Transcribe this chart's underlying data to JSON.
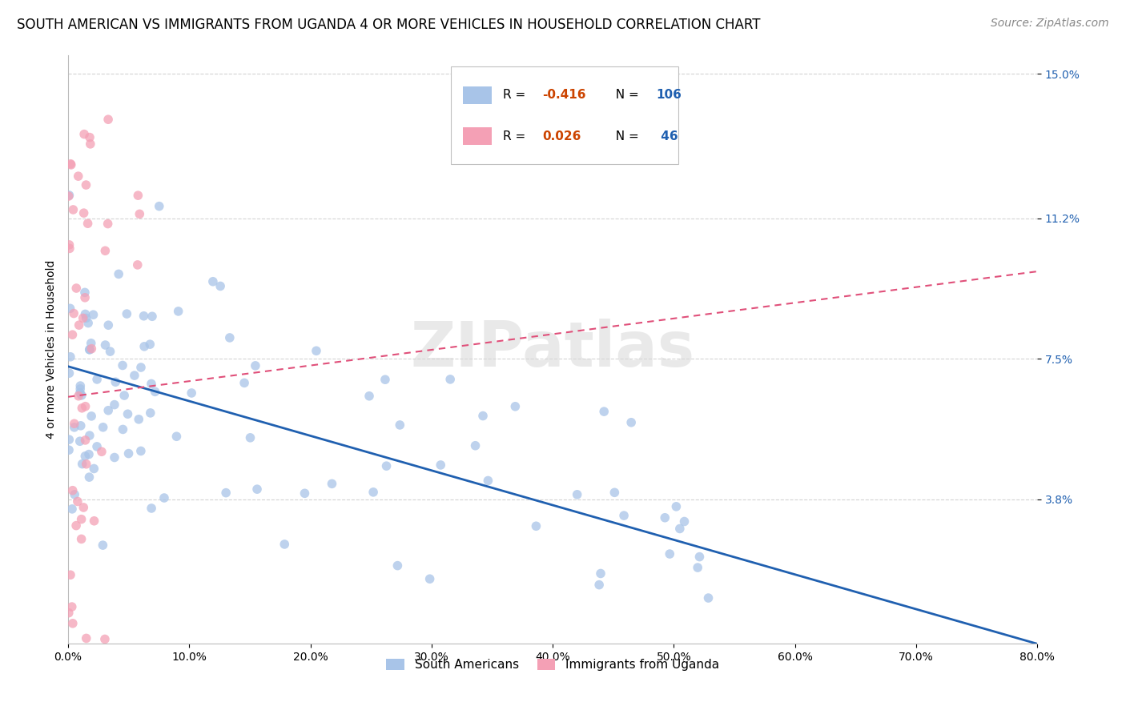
{
  "title": "SOUTH AMERICAN VS IMMIGRANTS FROM UGANDA 4 OR MORE VEHICLES IN HOUSEHOLD CORRELATION CHART",
  "source": "Source: ZipAtlas.com",
  "ylabel": "4 or more Vehicles in Household",
  "xmin": 0.0,
  "xmax": 0.8,
  "ymin": 0.0,
  "ymax": 0.155,
  "yticks": [
    0.038,
    0.075,
    0.112,
    0.15
  ],
  "ytick_labels": [
    "3.8%",
    "7.5%",
    "11.2%",
    "15.0%"
  ],
  "xticks": [
    0.0,
    0.1,
    0.2,
    0.3,
    0.4,
    0.5,
    0.6,
    0.7,
    0.8
  ],
  "xtick_labels": [
    "0.0%",
    "10.0%",
    "20.0%",
    "30.0%",
    "40.0%",
    "50.0%",
    "60.0%",
    "70.0%",
    "80.0%"
  ],
  "blue_color": "#a8c4e8",
  "pink_color": "#f4a0b5",
  "blue_line_color": "#2060b0",
  "pink_line_color": "#e0507a",
  "r1_color": "#cc4400",
  "n1_color": "#2060b0",
  "r2_color": "#cc4400",
  "n2_color": "#2060b0",
  "legend_label1": "South Americans",
  "legend_label2": "Immigrants from Uganda",
  "watermark": "ZIPatlas",
  "blue_N": 106,
  "pink_N": 46,
  "blue_trend_start_y": 0.073,
  "blue_trend_end_y": 0.0,
  "blue_trend_end_x": 0.8,
  "pink_trend_start_y": 0.065,
  "pink_trend_end_y": 0.098,
  "pink_trend_end_x": 0.8,
  "title_fontsize": 12,
  "axis_label_fontsize": 10,
  "tick_fontsize": 10,
  "source_fontsize": 10
}
